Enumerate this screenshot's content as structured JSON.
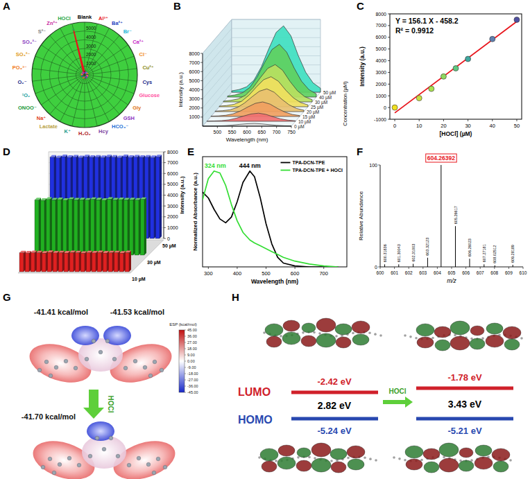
{
  "chart_data": [
    {
      "panel": "A",
      "type": "radar",
      "categories": [
        "Blank",
        "Al³⁺",
        "Ba²⁺",
        "Br⁻",
        "Ca²⁺",
        "Cl⁻",
        "Cu²⁺",
        "Cys",
        "Glucose",
        "Gly",
        "GSH",
        "HCO₃⁻",
        "Hcy",
        "H₂O₂",
        "K⁺",
        "Lactate",
        "Na⁺",
        "ONOO⁻",
        "¹O₂",
        "O₂⁻",
        "PO₄³⁻",
        "SO₃²⁻",
        "SO₄²⁻",
        "S²⁻",
        "Zn²⁺",
        "HOCl"
      ],
      "values": [
        300,
        320,
        280,
        310,
        290,
        330,
        270,
        300,
        310,
        290,
        320,
        280,
        300,
        310,
        290,
        330,
        300,
        280,
        310,
        290,
        320,
        300,
        280,
        310,
        290,
        5300
      ],
      "colors": [
        "#000000",
        "#e8141b",
        "#1f3fbf",
        "#21b5d6",
        "#c71fc7",
        "#f08c1a",
        "#8a8a1a",
        "#1a2a8a",
        "#ff4fa0",
        "#e07820",
        "#8b2fbf",
        "#1f6fd6",
        "#7b3fa0",
        "#b01818",
        "#1a9a8a",
        "#b8a040",
        "#e04020",
        "#1a9a3a",
        "#1aa0a0",
        "#1a2a8a",
        "#f07a1a",
        "#e09a20",
        "#8b3fbf",
        "#808080",
        "#c71fa0",
        "#2aa84a"
      ],
      "color": "#e8141b",
      "ylim": [
        0,
        6000
      ],
      "yticks": [
        1000,
        2000,
        3000,
        4000,
        5000
      ],
      "grid": true
    },
    {
      "panel": "B",
      "type": "waterfall",
      "x_label": "Wavelength (nm)",
      "y_label": "Intensity (a.u.)",
      "z_label": "Concentration (µM)",
      "x": [
        450,
        475,
        500,
        525,
        550,
        575,
        600,
        625,
        650,
        675,
        700,
        725,
        750
      ],
      "series": [
        {
          "name": "0 µM",
          "color": "#e0e0e0",
          "values": [
            6,
            12,
            24,
            54,
            114,
            195,
            270,
            300,
            255,
            165,
            90,
            42,
            18
          ]
        },
        {
          "name": "10 µM",
          "color": "#f07070",
          "values": [
            18,
            36,
            72,
            162,
            342,
            585,
            810,
            900,
            765,
            495,
            270,
            126,
            54
          ]
        },
        {
          "name": "15 µM",
          "color": "#f0a060",
          "values": [
            32,
            64,
            128,
            288,
            608,
            1040,
            1440,
            1600,
            1360,
            880,
            480,
            224,
            96
          ]
        },
        {
          "name": "20 µM",
          "color": "#e8c070",
          "values": [
            50,
            100,
            200,
            450,
            950,
            1625,
            2250,
            2500,
            2125,
            1375,
            750,
            350,
            150
          ]
        },
        {
          "name": "25 µM",
          "color": "#f0e060",
          "values": [
            66,
            132,
            264,
            594,
            1254,
            2145,
            2970,
            3300,
            2805,
            1815,
            990,
            462,
            198
          ]
        },
        {
          "name": "30 µM",
          "color": "#b8e060",
          "values": [
            82,
            164,
            328,
            738,
            1558,
            2665,
            3690,
            4100,
            3485,
            2255,
            1230,
            574,
            246
          ]
        },
        {
          "name": "40 µM",
          "color": "#60d060",
          "values": [
            116,
            232,
            464,
            1044,
            2204,
            3770,
            5220,
            5800,
            4930,
            3190,
            1740,
            812,
            348
          ]
        },
        {
          "name": "50 µM",
          "color": "#40e0c0",
          "values": [
            146,
            292,
            584,
            1314,
            2774,
            4745,
            6570,
            7300,
            6205,
            4015,
            2190,
            1022,
            438
          ]
        }
      ],
      "xlim": [
        450,
        750
      ],
      "xticks": [
        500,
        550,
        600,
        650,
        700,
        750
      ],
      "ylim": [
        0,
        8000
      ],
      "yticks": [
        1000,
        2000,
        3000,
        4000,
        5000,
        6000,
        7000,
        8000
      ],
      "grid": true
    },
    {
      "panel": "C",
      "type": "scatter",
      "x_label": "[HOCl] (µM)",
      "y_label": "Intensity (a.u.)",
      "x": [
        0,
        10,
        15,
        20,
        25,
        30,
        40,
        50
      ],
      "values": [
        0,
        800,
        1600,
        2650,
        3350,
        4150,
        5850,
        7500
      ],
      "colors": [
        "#f0e020",
        "#c8e040",
        "#a8e050",
        "#90d860",
        "#60c880",
        "#40a8a0",
        "#6080b0",
        "#5050a0"
      ],
      "fit": {
        "slope": 156.1,
        "intercept": -458.2,
        "color": "#e8141b",
        "label": "Y = 156.1 X - 458.2",
        "r2_label": "R² = 0.9912"
      },
      "xlim": [
        -2,
        52
      ],
      "xticks": [
        0,
        10,
        20,
        30,
        40,
        50
      ],
      "ylim": [
        -1000,
        8000
      ],
      "yticks": [
        -1000,
        0,
        1000,
        2000,
        3000,
        4000,
        5000,
        6000,
        7000,
        8000
      ]
    },
    {
      "panel": "D",
      "type": "bar3d",
      "y_label": "Intensity (a.u.)",
      "categories": [
        null,
        null,
        null,
        null,
        null,
        null,
        null,
        null,
        null,
        null,
        null,
        null,
        null,
        null,
        null,
        null,
        null,
        null,
        null,
        null
      ],
      "series": [
        {
          "name": "10 µM",
          "color": "#e02020",
          "values": [
            1750,
            1720,
            1760,
            1740,
            1710,
            1770,
            1730,
            1750,
            1720,
            1760,
            1740,
            1700,
            1750,
            1730,
            1760,
            1720,
            1740,
            1750,
            1710,
            1760
          ]
        },
        {
          "name": "30 µM",
          "color": "#20b020",
          "values": [
            5100,
            5050,
            5150,
            5080,
            5120,
            5060,
            5140,
            5090,
            5110,
            5070,
            5130,
            5100,
            5060,
            5150,
            5080,
            5120,
            5090,
            5110,
            5070,
            5140
          ]
        },
        {
          "name": "50 µM",
          "color": "#2030e0",
          "values": [
            7500,
            7450,
            7550,
            7480,
            7520,
            7460,
            7540,
            7490,
            7510,
            7470,
            7530,
            7500,
            7460,
            7550,
            7480,
            7520,
            7490,
            7510,
            7470,
            7540
          ]
        }
      ],
      "ylim": [
        0,
        8000
      ],
      "yticks": [
        0,
        1000,
        2000,
        3000,
        4000,
        5000,
        6000,
        7000,
        8000
      ],
      "grid": true
    },
    {
      "panel": "E",
      "type": "line",
      "x_label": "Wavelength (nm)",
      "y_label": "Normalized Absorbance (a.u.)",
      "x": [
        280,
        300,
        320,
        340,
        360,
        380,
        400,
        420,
        444,
        460,
        480,
        500,
        520,
        540,
        560,
        600,
        650,
        700,
        750
      ],
      "series": [
        {
          "name": "TPA-DCN-TPE",
          "color": "#000000",
          "values": [
            0.78,
            0.72,
            0.6,
            0.5,
            0.46,
            0.52,
            0.68,
            0.88,
            1.0,
            0.94,
            0.72,
            0.45,
            0.24,
            0.1,
            0.04,
            0.01,
            0,
            0,
            0
          ]
        },
        {
          "name": "TPA-DCN-TPE + HOCl",
          "color": "#33dd33",
          "values": [
            0.7,
            0.92,
            1.0,
            0.98,
            0.85,
            0.65,
            0.48,
            0.36,
            0.28,
            0.25,
            0.22,
            0.19,
            0.16,
            0.13,
            0.1,
            0.06,
            0.03,
            0.01,
            0
          ]
        }
      ],
      "annotations": [
        {
          "text": "324 nm",
          "x": 324,
          "y": 1.0,
          "color": "#33dd33"
        },
        {
          "text": "444 nm",
          "x": 444,
          "y": 1.0,
          "color": "#000000"
        }
      ],
      "xlim": [
        280,
        780
      ],
      "xticks": [
        300,
        400,
        500,
        600,
        700
      ],
      "ylim": [
        0,
        1.15
      ],
      "tick_labels": "x",
      "legend": "top-right"
    },
    {
      "panel": "F",
      "type": "stem",
      "x_label": "m/z",
      "y_label": "Relative Abundance",
      "x": [
        600.31836,
        601.30043,
        602.31003,
        603.32123,
        604.26392,
        605.26617,
        606.26023,
        607.27181,
        608.02512,
        609.28189
      ],
      "values": [
        2.5,
        2.5,
        3,
        9,
        100,
        40,
        8,
        2.5,
        1.5,
        2
      ],
      "xlim": [
        600,
        610
      ],
      "xticks": [
        600,
        601,
        602,
        603,
        604,
        605,
        606,
        607,
        608,
        609,
        610
      ],
      "ylim": [
        0,
        100
      ],
      "yticks": [
        0,
        100
      ],
      "data_labels": true,
      "color": "#000000"
    }
  ],
  "esp_panel": {
    "panel": "G",
    "top_labels": [
      "-41.41 kcal/mol",
      "-41.53 kcal/mol"
    ],
    "bottom_label": "-41.70 kcal/mol",
    "arrow_label": "HOCl",
    "colorbar": {
      "title": "ESP (kcal/mol)",
      "range": [
        -45,
        45
      ],
      "ticks": [
        {
          "value": 45,
          "label": "45.00"
        },
        {
          "value": 36,
          "label": "36.00"
        },
        {
          "value": 27,
          "label": "27.00"
        },
        {
          "value": 18,
          "label": "18.00"
        },
        {
          "value": 9,
          "label": "9.00"
        },
        {
          "value": 0,
          "label": "0.00"
        },
        {
          "value": -9,
          "label": "-9.00"
        },
        {
          "value": -18,
          "label": "-18.00"
        },
        {
          "value": -27,
          "label": "-27.00"
        },
        {
          "value": -36,
          "label": "-36.00"
        },
        {
          "value": -45,
          "label": "-45.00"
        }
      ]
    }
  },
  "orbital_panel": {
    "panel": "H",
    "lumo_label": "LUMO",
    "homo_label": "HOMO",
    "arrow_label": "HOCl",
    "before": {
      "lumo": "-2.42 eV",
      "gap": "2.82 eV",
      "homo": "-5.24 eV"
    },
    "after": {
      "lumo": "-1.78 eV",
      "gap": "3.43 eV",
      "homo": "-5.21 eV"
    }
  }
}
